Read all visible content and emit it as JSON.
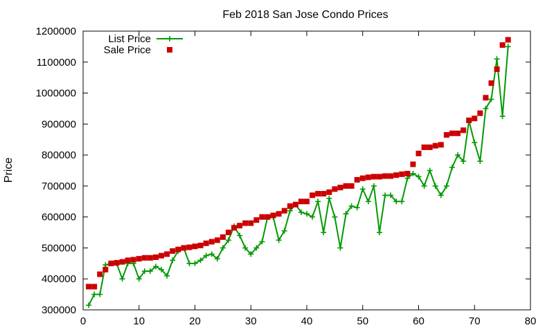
{
  "chart_data": {
    "type": "scatter",
    "title": "Feb 2018 San Jose Condo Prices",
    "ylabel": "Price",
    "xlabel": "",
    "xlim": [
      0,
      80
    ],
    "ylim": [
      300000,
      1200000
    ],
    "xticks": [
      0,
      10,
      20,
      30,
      40,
      50,
      60,
      70,
      80
    ],
    "yticks": [
      300000,
      400000,
      500000,
      600000,
      700000,
      800000,
      900000,
      1000000,
      1100000,
      1200000
    ],
    "grid": false,
    "legend": "top-left",
    "series": [
      {
        "name": "List Price",
        "style": "linespoints",
        "marker": "plus",
        "color": "#009900",
        "x": [
          1,
          2,
          3,
          4,
          5,
          6,
          7,
          8,
          9,
          10,
          11,
          12,
          13,
          14,
          15,
          16,
          17,
          18,
          19,
          20,
          21,
          22,
          23,
          24,
          25,
          26,
          27,
          28,
          29,
          30,
          31,
          32,
          33,
          34,
          35,
          36,
          37,
          38,
          39,
          40,
          41,
          42,
          43,
          44,
          45,
          46,
          47,
          48,
          49,
          50,
          51,
          52,
          53,
          54,
          55,
          56,
          57,
          58,
          59,
          60,
          61,
          62,
          63,
          64,
          65,
          66,
          67,
          68,
          69,
          70,
          71,
          72,
          73,
          74,
          75,
          76
        ],
        "y": [
          315000,
          350000,
          350000,
          445000,
          450000,
          450000,
          400000,
          450000,
          450000,
          400000,
          425000,
          425000,
          440000,
          430000,
          410000,
          460000,
          490000,
          500000,
          450000,
          450000,
          460000,
          475000,
          480000,
          465000,
          500000,
          525000,
          570000,
          540000,
          500000,
          480000,
          500000,
          520000,
          600000,
          600000,
          525000,
          555000,
          620000,
          640000,
          615000,
          610000,
          600000,
          650000,
          550000,
          660000,
          600000,
          500000,
          610000,
          635000,
          630000,
          690000,
          650000,
          700000,
          550000,
          670000,
          670000,
          650000,
          650000,
          725000,
          740000,
          730000,
          700000,
          750000,
          700000,
          670000,
          700000,
          760000,
          800000,
          780000,
          910000,
          840000,
          780000,
          950000,
          980000,
          1110000,
          925000,
          1150000
        ]
      },
      {
        "name": "Sale Price",
        "style": "points",
        "marker": "square",
        "color": "#cc0000",
        "x": [
          1,
          2,
          3,
          4,
          5,
          6,
          7,
          8,
          9,
          10,
          11,
          12,
          13,
          14,
          15,
          16,
          17,
          18,
          19,
          20,
          21,
          22,
          23,
          24,
          25,
          26,
          27,
          28,
          29,
          30,
          31,
          32,
          33,
          34,
          35,
          36,
          37,
          38,
          39,
          40,
          41,
          42,
          43,
          44,
          45,
          46,
          47,
          48,
          49,
          50,
          51,
          52,
          53,
          54,
          55,
          56,
          57,
          58,
          59,
          60,
          61,
          62,
          63,
          64,
          65,
          66,
          67,
          68,
          69,
          70,
          71,
          72,
          73,
          74,
          75,
          76
        ],
        "y": [
          375000,
          375000,
          415000,
          430000,
          450000,
          452000,
          455000,
          460000,
          462000,
          465000,
          468000,
          468000,
          470000,
          475000,
          480000,
          490000,
          495000,
          500000,
          502000,
          505000,
          508000,
          515000,
          520000,
          525000,
          535000,
          550000,
          565000,
          572000,
          580000,
          580000,
          590000,
          600000,
          600000,
          605000,
          610000,
          620000,
          635000,
          640000,
          650000,
          650000,
          670000,
          675000,
          675000,
          680000,
          690000,
          695000,
          700000,
          700000,
          720000,
          725000,
          728000,
          730000,
          730000,
          732000,
          732000,
          735000,
          738000,
          740000,
          770000,
          805000,
          825000,
          825000,
          830000,
          833000,
          865000,
          870000,
          870000,
          880000,
          912000,
          918000,
          935000,
          985000,
          1032000,
          1077000,
          1155000,
          1172000
        ]
      }
    ]
  }
}
